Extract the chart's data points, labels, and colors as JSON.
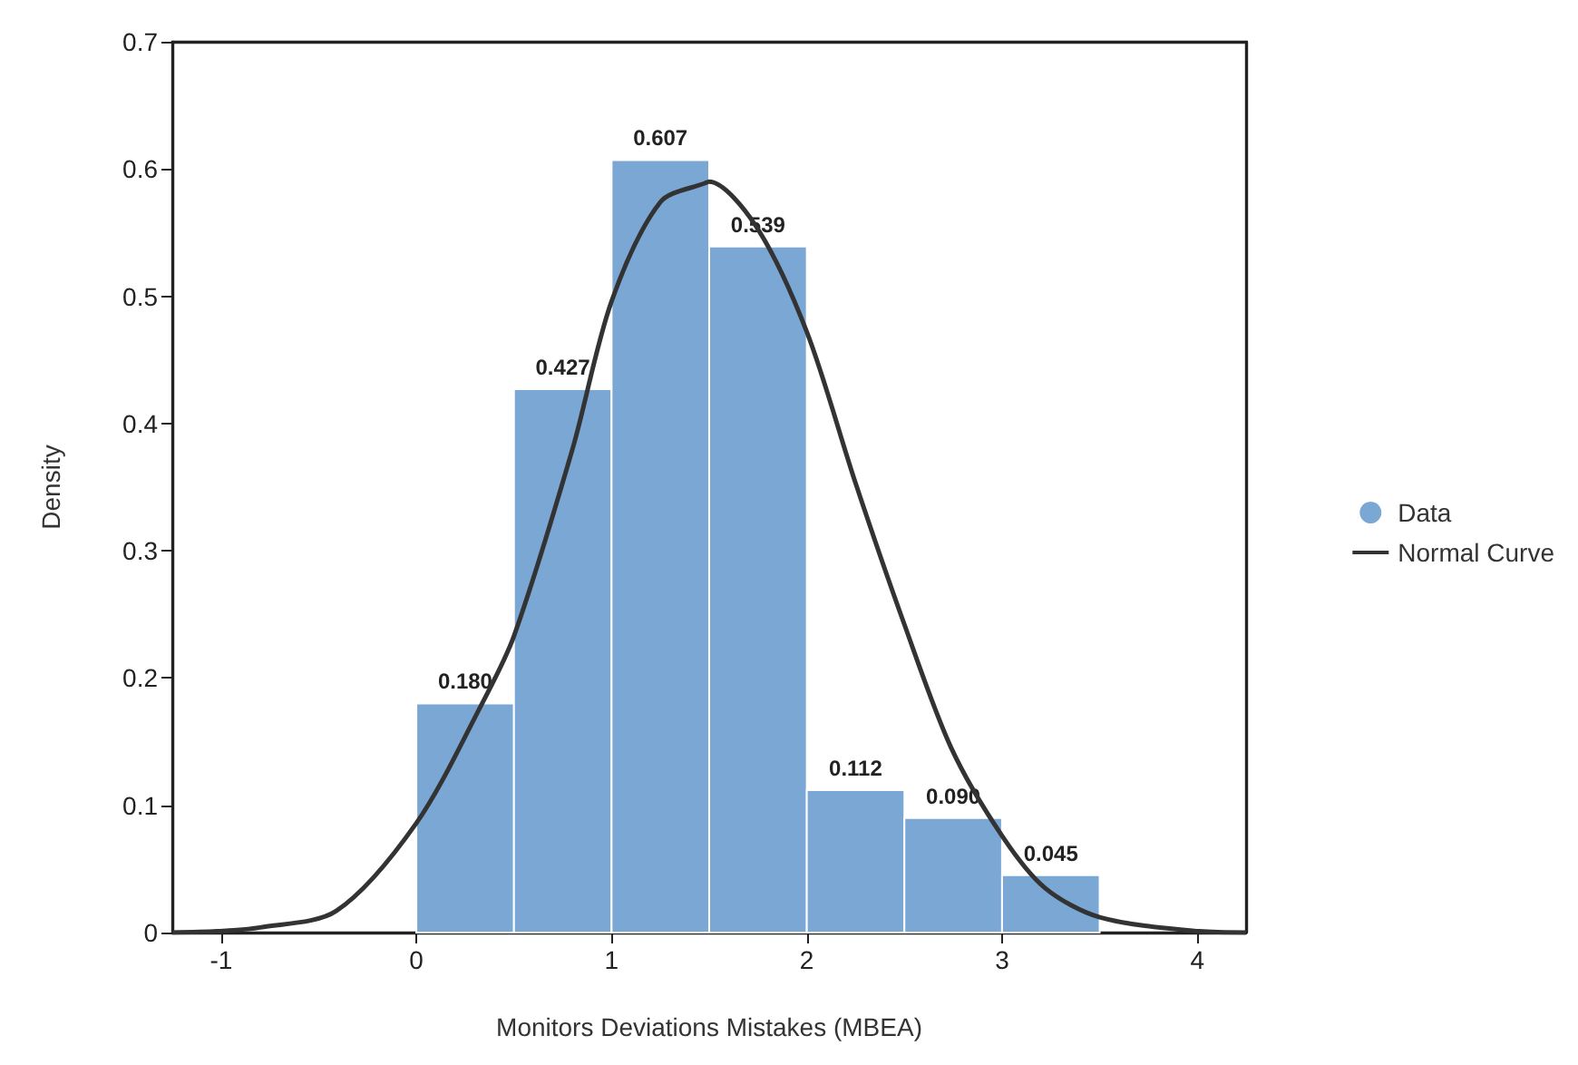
{
  "chart_data": {
    "type": "histogram",
    "xlabel": "Monitors Deviations Mistakes (MBEA)",
    "ylabel": "Density",
    "bins": [
      0,
      0.5,
      1,
      1.5,
      2,
      2.5,
      3,
      3.5
    ],
    "series": [
      {
        "name": "Data",
        "color": "#7ba7d4",
        "values": [
          0.18,
          0.427,
          0.607,
          0.539,
          0.112,
          0.09,
          0.045
        ],
        "value_labels": [
          "0.180",
          "0.427",
          "0.607",
          "0.539",
          "0.112",
          "0.090",
          "0.045"
        ]
      },
      {
        "name": "Normal Curve",
        "type": "line",
        "color": "#333333",
        "x": [
          -1.25,
          -1.02,
          -0.8,
          -0.41,
          0,
          0.33,
          0.5,
          0.8,
          1,
          1.25,
          1.48,
          1.5,
          1.74,
          2,
          2.25,
          2.5,
          2.74,
          3,
          3.22,
          3.5,
          4.01,
          4.25
        ],
        "values": [
          0,
          0.001,
          0.004,
          0.017,
          0.086,
          0.178,
          0.233,
          0.38,
          0.496,
          0.574,
          0.589,
          0.59,
          0.555,
          0.472,
          0.353,
          0.242,
          0.145,
          0.076,
          0.035,
          0.012,
          0.001,
          0
        ]
      }
    ],
    "xlim": [
      -1.25,
      4.25
    ],
    "xticks": [
      -1,
      0,
      1,
      2,
      3,
      4
    ],
    "ylim": [
      0,
      0.7
    ],
    "yticks": [
      0,
      0.1,
      0.2,
      0.3,
      0.4,
      0.5,
      0.6,
      0.7
    ],
    "legend": "right",
    "marker": "none"
  }
}
